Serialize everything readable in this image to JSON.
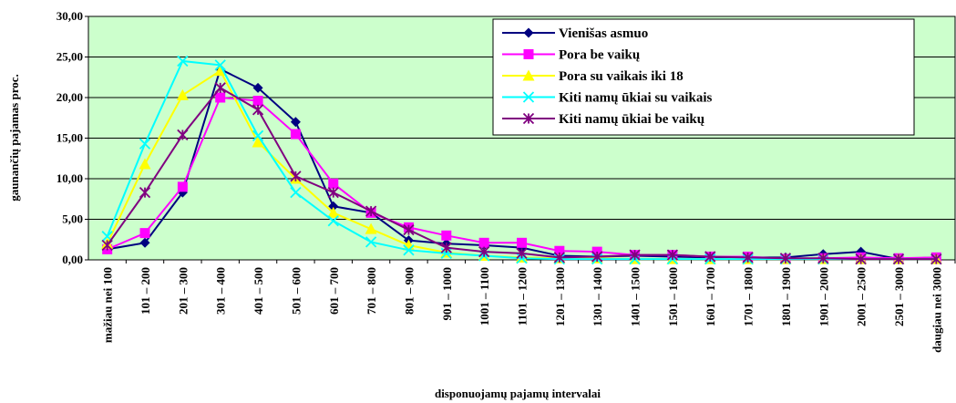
{
  "chart_data": {
    "type": "line",
    "y_label": "gaunančių pajamas proc.",
    "x_label": "disponuojamų pajamų intervalai",
    "categories": [
      "mažiau nei 100",
      "101 – 200",
      "201 – 300",
      "301 – 400",
      "401 – 500",
      "501 – 600",
      "601 – 700",
      "701 – 800",
      "801 – 900",
      "901 – 1000",
      "1001 – 1100",
      "1101 – 1200",
      "1201 – 1300",
      "1301 – 1400",
      "1401 – 1500",
      "1501 – 1600",
      "1601 – 1700",
      "1701 – 1800",
      "1801 – 1900",
      "1901 – 2000",
      "2001 – 2500",
      "2501 – 3000",
      "daugiau nei 3000"
    ],
    "series": [
      {
        "name": "Vienišas asmuo",
        "color": "#000080",
        "marker": "diamond",
        "values": [
          1.3,
          2.1,
          8.3,
          23.5,
          21.2,
          17.0,
          6.6,
          5.8,
          2.4,
          2.0,
          1.8,
          1.5,
          0.5,
          0.4,
          0.5,
          0.4,
          0.3,
          0.3,
          0.3,
          0.7,
          1.0,
          0.1,
          0.3
        ]
      },
      {
        "name": "Pora be vaikų",
        "color": "#ff00ff",
        "marker": "square",
        "values": [
          1.3,
          3.3,
          9.0,
          20.0,
          19.6,
          15.5,
          9.4,
          5.8,
          4.0,
          3.0,
          2.1,
          2.1,
          1.1,
          1.0,
          0.6,
          0.6,
          0.4,
          0.4,
          0.1,
          0.2,
          0.3,
          0.2,
          0.3
        ]
      },
      {
        "name": "Pora su vaikais iki 18",
        "color": "#ffff00",
        "marker": "triangle",
        "values": [
          2.0,
          11.8,
          20.3,
          23.3,
          14.5,
          10.0,
          5.8,
          3.8,
          1.8,
          0.9,
          0.5,
          0.3,
          0.2,
          0.2,
          0.1,
          0.1,
          0.1,
          0.1,
          0.1,
          0.1,
          0.1,
          0.1,
          0.1
        ]
      },
      {
        "name": "Kiti namų ūkiai su vaikais",
        "color": "#00ffff",
        "marker": "x",
        "values": [
          2.9,
          14.3,
          24.5,
          24.0,
          15.3,
          8.3,
          4.8,
          2.2,
          1.2,
          0.8,
          0.5,
          0.2,
          0.1,
          0.1,
          0.1,
          0.1,
          0.1,
          0.1,
          0.1,
          0.1,
          0.1,
          0.1,
          0.1
        ]
      },
      {
        "name": "Kiti namų ūkiai be vaikų",
        "color": "#800080",
        "marker": "star",
        "values": [
          1.8,
          8.3,
          15.4,
          21.2,
          18.5,
          10.3,
          8.3,
          6.0,
          3.7,
          1.5,
          1.0,
          0.8,
          0.3,
          0.4,
          0.6,
          0.6,
          0.4,
          0.3,
          0.2,
          0.2,
          0.1,
          0.1,
          0.1
        ]
      }
    ],
    "ylim": [
      0,
      30
    ],
    "yticks": [
      {
        "value": 0,
        "label": "0,00"
      },
      {
        "value": 5,
        "label": "5,00"
      },
      {
        "value": 10,
        "label": "10,00"
      },
      {
        "value": 15,
        "label": "15,00"
      },
      {
        "value": 20,
        "label": "20,00"
      },
      {
        "value": 25,
        "label": "25,00"
      },
      {
        "value": 30,
        "label": "30,00"
      }
    ],
    "grid": true,
    "legend": "top-right"
  }
}
